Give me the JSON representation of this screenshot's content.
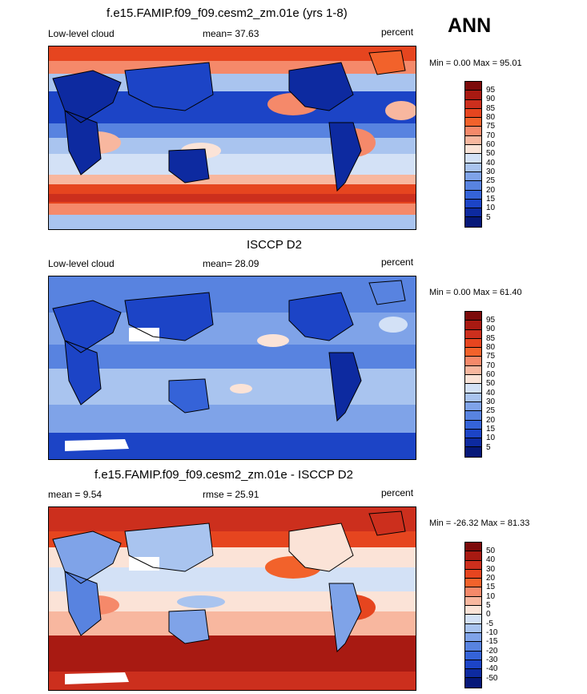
{
  "season": "ANN",
  "panels": [
    {
      "title": "f.e15.FAMIP.f09_f09.cesm2_zm.01e (yrs 1-8)",
      "left": "Low-level cloud",
      "center": "mean=  37.63",
      "right": "percent",
      "minmax": "Min =   0.00 Max =  95.01",
      "colorbar": {
        "labels": [
          "95",
          "90",
          "85",
          "80",
          "75",
          "70",
          "60",
          "50",
          "40",
          "30",
          "25",
          "20",
          "15",
          "10",
          "5"
        ],
        "colors": [
          "#7c0a0a",
          "#a81a12",
          "#cc2f1d",
          "#e6451f",
          "#f2622b",
          "#f5896a",
          "#f8b79f",
          "#fbe3d7",
          "#d3e1f6",
          "#a9c4ef",
          "#7fa3e8",
          "#5883e0",
          "#3563d8",
          "#1c44c6",
          "#0d2aa0",
          "#061879"
        ]
      }
    },
    {
      "title": "ISCCP D2",
      "left": "Low-level cloud",
      "center": "mean=  28.09",
      "right": "percent",
      "minmax": "Min =   0.00 Max =  61.40",
      "colorbar": {
        "labels": [
          "95",
          "90",
          "85",
          "80",
          "75",
          "70",
          "60",
          "50",
          "40",
          "30",
          "25",
          "20",
          "15",
          "10",
          "5"
        ],
        "colors": [
          "#7c0a0a",
          "#a81a12",
          "#cc2f1d",
          "#e6451f",
          "#f2622b",
          "#f5896a",
          "#f8b79f",
          "#fbe3d7",
          "#d3e1f6",
          "#a9c4ef",
          "#7fa3e8",
          "#5883e0",
          "#3563d8",
          "#1c44c6",
          "#0d2aa0",
          "#061879"
        ]
      }
    },
    {
      "title": "f.e15.FAMIP.f09_f09.cesm2_zm.01e - ISCCP D2",
      "left": "mean =   9.54",
      "center": "rmse =  25.91",
      "right": "percent",
      "minmax": "Min = -26.32 Max =  81.33",
      "colorbar": {
        "labels": [
          "50",
          "40",
          "30",
          "20",
          "15",
          "10",
          "5",
          "0",
          "-5",
          "-10",
          "-15",
          "-20",
          "-30",
          "-40",
          "-50"
        ],
        "colors": [
          "#7c0a0a",
          "#a81a12",
          "#cc2f1d",
          "#e6451f",
          "#f2622b",
          "#f5896a",
          "#f8b79f",
          "#fbe3d7",
          "#d3e1f6",
          "#a9c4ef",
          "#7fa3e8",
          "#5883e0",
          "#3563d8",
          "#1c44c6",
          "#0d2aa0",
          "#061879"
        ]
      }
    }
  ]
}
